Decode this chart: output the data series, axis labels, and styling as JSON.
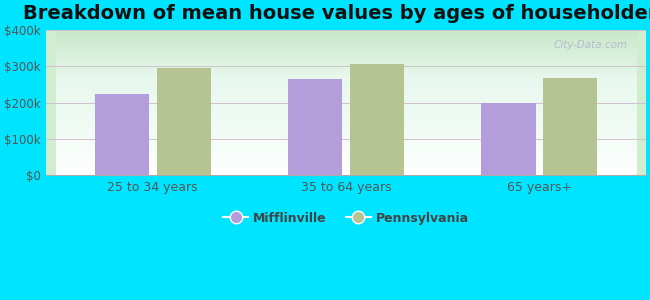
{
  "title": "Breakdown of mean house values by ages of householders",
  "categories": [
    "25 to 34 years",
    "35 to 64 years",
    "65 years+"
  ],
  "mifflinville_values": [
    225000,
    265000,
    198000
  ],
  "pennsylvania_values": [
    297000,
    308000,
    268000
  ],
  "bar_color_mifflinville": "#b39ddb",
  "bar_color_pennsylvania": "#b5c490",
  "background_color": "#00e5ff",
  "ylim": [
    0,
    400000
  ],
  "yticks": [
    0,
    100000,
    200000,
    300000,
    400000
  ],
  "ytick_labels": [
    "$0",
    "$100k",
    "$200k",
    "$300k",
    "$400k"
  ],
  "legend_mifflinville": "Mifflinville",
  "legend_pennsylvania": "Pennsylvania",
  "title_fontsize": 14,
  "bar_width": 0.28,
  "watermark": "City-Data.com"
}
